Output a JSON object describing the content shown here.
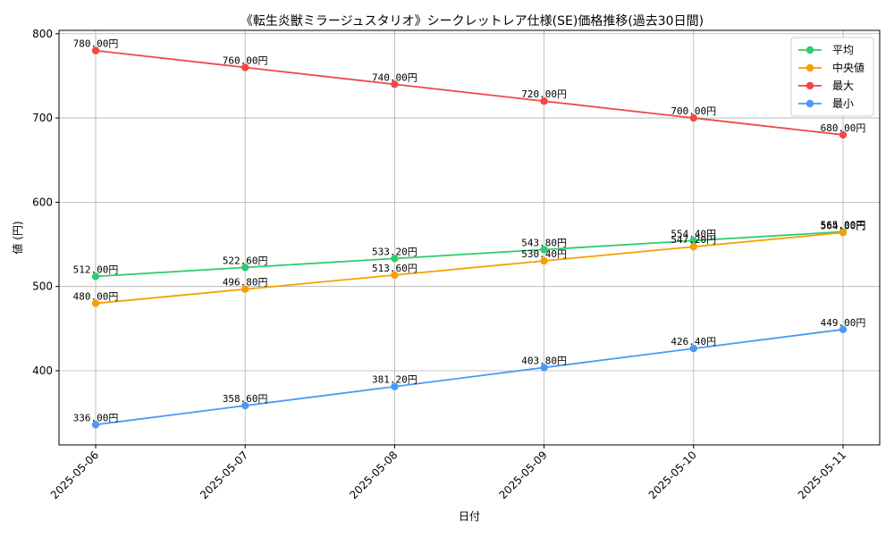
{
  "chart_data": {
    "type": "line",
    "title": "《転生炎獣ミラージュスタリオ》シークレットレア仕様(SE)価格推移(過去30日間)",
    "xlabel": "日付",
    "ylabel": "値 (円)",
    "categories": [
      "2025-05-06",
      "2025-05-07",
      "2025-05-08",
      "2025-05-09",
      "2025-05-10",
      "2025-05-11"
    ],
    "ylim": [
      312,
      804
    ],
    "yticks": [
      400,
      500,
      600,
      700,
      800
    ],
    "grid": true,
    "legend_position": "top-right",
    "value_suffix": "円",
    "series": [
      {
        "name": "平均",
        "color": "#2ecc71",
        "values": [
          512.0,
          522.6,
          533.2,
          543.8,
          554.4,
          565.0
        ],
        "labels": [
          "512.00円",
          "522.60円",
          "533.20円",
          "543.80円",
          "554.40円",
          "565.00円"
        ]
      },
      {
        "name": "中央値",
        "color": "#f5a000",
        "values": [
          480.0,
          496.8,
          513.6,
          530.4,
          547.2,
          564.0
        ],
        "labels": [
          "480.00円",
          "496.80円",
          "513.60円",
          "530.40円",
          "547.20円",
          "564.00円"
        ]
      },
      {
        "name": "最大",
        "color": "#f04848",
        "values": [
          780.0,
          760.0,
          740.0,
          720.0,
          700.0,
          680.0
        ],
        "labels": [
          "780.00円",
          "760.00円",
          "740.00円",
          "720.00円",
          "700.00円",
          "680.00円"
        ]
      },
      {
        "name": "最小",
        "color": "#4a9af5",
        "values": [
          336.0,
          358.6,
          381.2,
          403.8,
          426.4,
          449.0
        ],
        "labels": [
          "336.00円",
          "358.60円",
          "381.20円",
          "403.80円",
          "426.40円",
          "449.00円"
        ]
      }
    ]
  }
}
